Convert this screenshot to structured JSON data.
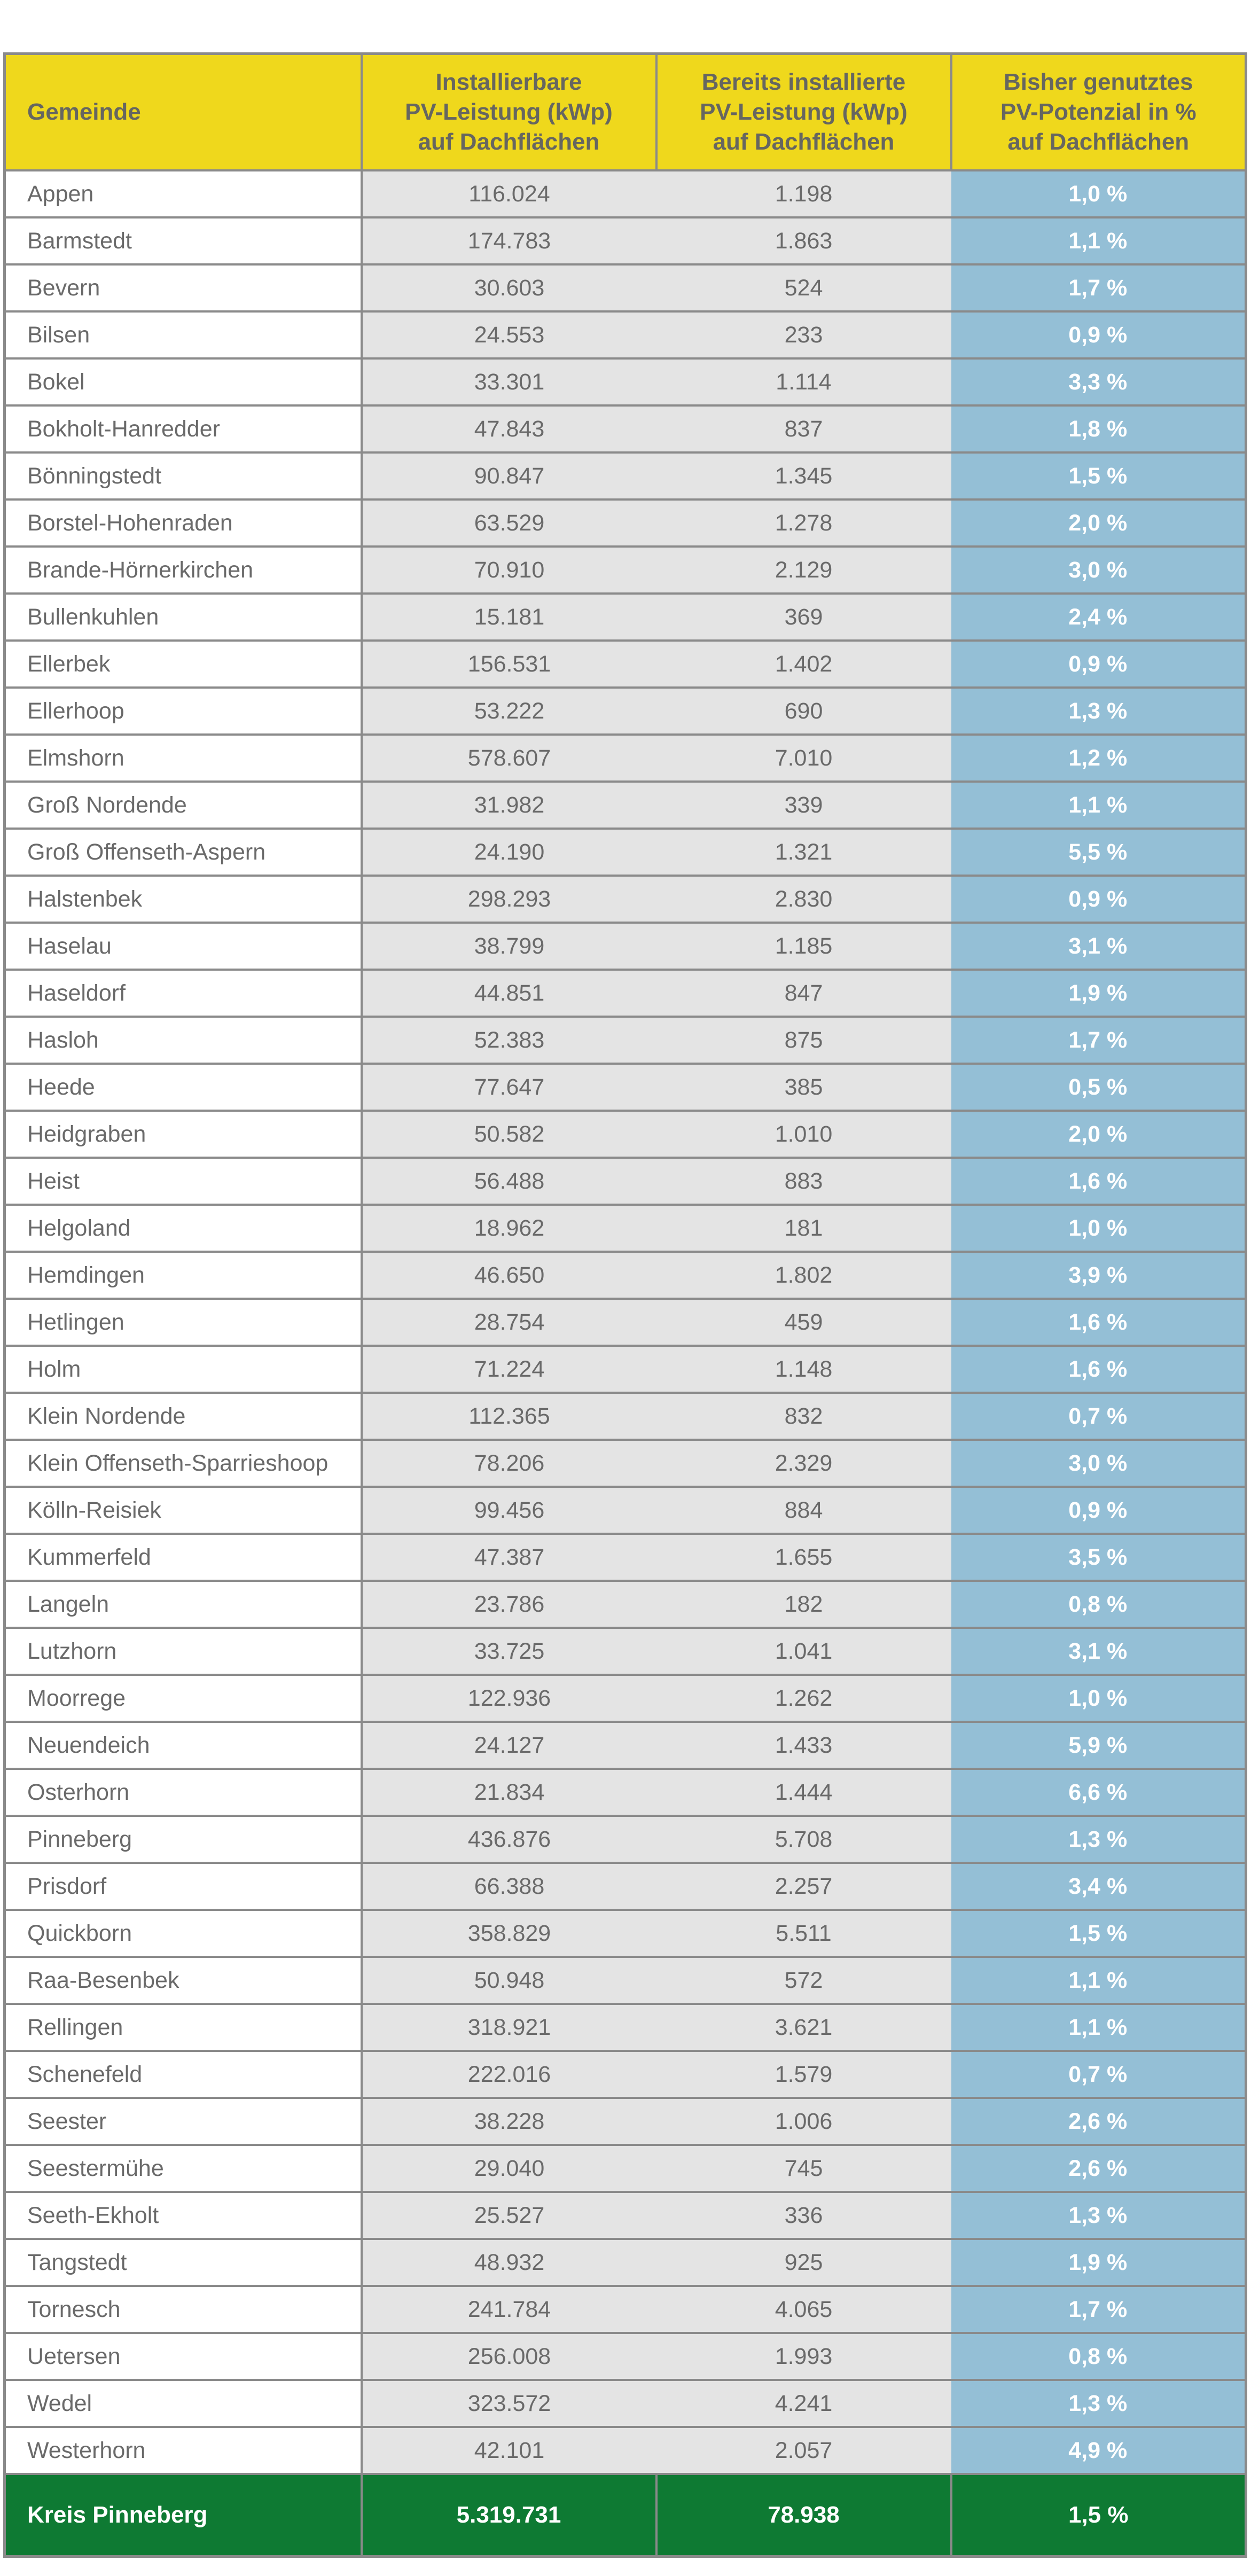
{
  "table": {
    "headers": [
      [
        "Gemeinde"
      ],
      [
        "Installierbare",
        "PV-Leistung (kWp)",
        "auf Dachflächen"
      ],
      [
        "Bereits installierte",
        "PV-Leistung (kWp)",
        "auf Dachflächen"
      ],
      [
        "Bisher genutztes",
        "PV-Potenzial in %",
        "auf Dachflächen"
      ]
    ],
    "rows": [
      [
        "Appen",
        "116.024",
        "1.198",
        "1,0 %"
      ],
      [
        "Barmstedt",
        "174.783",
        "1.863",
        "1,1 %"
      ],
      [
        "Bevern",
        "30.603",
        "524",
        "1,7 %"
      ],
      [
        "Bilsen",
        "24.553",
        "233",
        "0,9 %"
      ],
      [
        "Bokel",
        "33.301",
        "1.114",
        "3,3 %"
      ],
      [
        "Bokholt-Hanredder",
        "47.843",
        "837",
        "1,8 %"
      ],
      [
        "Bönningstedt",
        "90.847",
        "1.345",
        "1,5 %"
      ],
      [
        "Borstel-Hohenraden",
        "63.529",
        "1.278",
        "2,0 %"
      ],
      [
        "Brande-Hörnerkirchen",
        "70.910",
        "2.129",
        "3,0 %"
      ],
      [
        "Bullenkuhlen",
        "15.181",
        "369",
        "2,4 %"
      ],
      [
        "Ellerbek",
        "156.531",
        "1.402",
        "0,9 %"
      ],
      [
        "Ellerhoop",
        "53.222",
        "690",
        "1,3 %"
      ],
      [
        "Elmshorn",
        "578.607",
        "7.010",
        "1,2 %"
      ],
      [
        "Groß Nordende",
        "31.982",
        "339",
        "1,1 %"
      ],
      [
        "Groß Offenseth-Aspern",
        "24.190",
        "1.321",
        "5,5 %"
      ],
      [
        "Halstenbek",
        "298.293",
        "2.830",
        "0,9 %"
      ],
      [
        "Haselau",
        "38.799",
        "1.185",
        "3,1 %"
      ],
      [
        "Haseldorf",
        "44.851",
        "847",
        "1,9 %"
      ],
      [
        "Hasloh",
        "52.383",
        "875",
        "1,7 %"
      ],
      [
        "Heede",
        "77.647",
        "385",
        "0,5 %"
      ],
      [
        "Heidgraben",
        "50.582",
        "1.010",
        "2,0 %"
      ],
      [
        "Heist",
        "56.488",
        "883",
        "1,6 %"
      ],
      [
        "Helgoland",
        "18.962",
        "181",
        "1,0 %"
      ],
      [
        "Hemdingen",
        "46.650",
        "1.802",
        "3,9 %"
      ],
      [
        "Hetlingen",
        "28.754",
        "459",
        "1,6 %"
      ],
      [
        "Holm",
        "71.224",
        "1.148",
        "1,6 %"
      ],
      [
        "Klein Nordende",
        "112.365",
        "832",
        "0,7 %"
      ],
      [
        "Klein Offenseth-Sparrieshoop",
        "78.206",
        "2.329",
        "3,0 %"
      ],
      [
        "Kölln-Reisiek",
        "99.456",
        "884",
        "0,9 %"
      ],
      [
        "Kummerfeld",
        "47.387",
        "1.655",
        "3,5 %"
      ],
      [
        "Langeln",
        "23.786",
        "182",
        "0,8 %"
      ],
      [
        "Lutzhorn",
        "33.725",
        "1.041",
        "3,1 %"
      ],
      [
        "Moorrege",
        "122.936",
        "1.262",
        "1,0 %"
      ],
      [
        "Neuendeich",
        "24.127",
        "1.433",
        "5,9 %"
      ],
      [
        "Osterhorn",
        "21.834",
        "1.444",
        "6,6 %"
      ],
      [
        "Pinneberg",
        "436.876",
        "5.708",
        "1,3 %"
      ],
      [
        "Prisdorf",
        "66.388",
        "2.257",
        "3,4 %"
      ],
      [
        "Quickborn",
        "358.829",
        "5.511",
        "1,5 %"
      ],
      [
        "Raa-Besenbek",
        "50.948",
        "572",
        "1,1 %"
      ],
      [
        "Rellingen",
        "318.921",
        "3.621",
        "1,1 %"
      ],
      [
        "Schenefeld",
        "222.016",
        "1.579",
        "0,7 %"
      ],
      [
        "Seester",
        "38.228",
        "1.006",
        "2,6 %"
      ],
      [
        "Seestermühe",
        "29.040",
        "745",
        "2,6 %"
      ],
      [
        "Seeth-Ekholt",
        "25.527",
        "336",
        "1,3 %"
      ],
      [
        "Tangstedt",
        "48.932",
        "925",
        "1,9 %"
      ],
      [
        "Tornesch",
        "241.784",
        "4.065",
        "1,7 %"
      ],
      [
        "Uetersen",
        "256.008",
        "1.993",
        "0,8 %"
      ],
      [
        "Wedel",
        "323.572",
        "4.241",
        "1,3 %"
      ],
      [
        "Westerhorn",
        "42.101",
        "2.057",
        "4,9 %"
      ]
    ],
    "total": [
      "Kreis Pinneberg",
      "5.319.731",
      "78.938",
      "1,5 %"
    ]
  }
}
